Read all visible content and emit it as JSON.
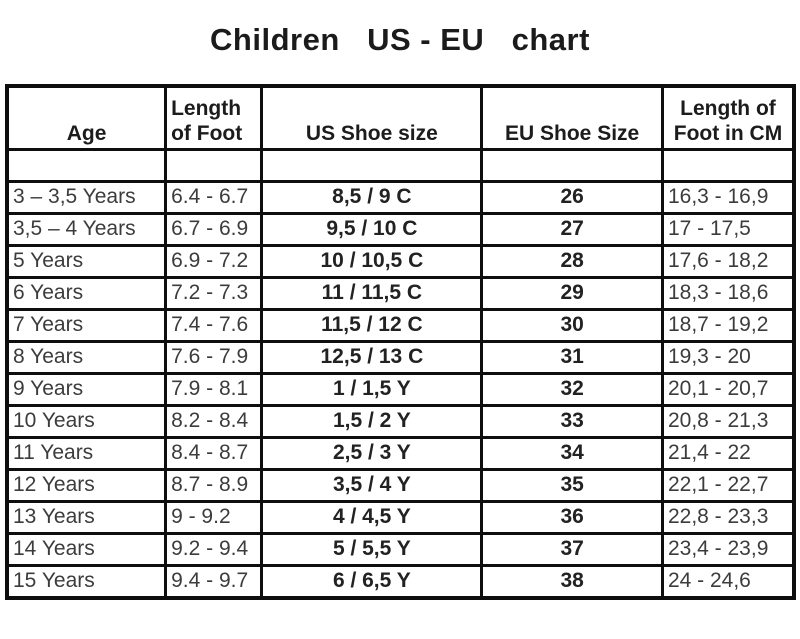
{
  "title": "Children   US - EU   chart",
  "colors": {
    "background": "#ffffff",
    "border": "#0e0e0e",
    "header_text": "#1c1c1c",
    "data_text": "#3c3c3c",
    "bold_data_text": "#222222"
  },
  "chart_data": {
    "type": "table",
    "title": "Children US - EU chart",
    "columns": [
      "Age",
      "Length\nof Foot",
      "US Shoe size",
      "EU Shoe Size",
      "Length of\nFoot in CM"
    ],
    "rows": [
      [
        "3 – 3,5 Years",
        "6.4 - 6.7",
        "8,5 / 9 C",
        "26",
        "16,3 - 16,9"
      ],
      [
        "3,5 – 4 Years",
        "6.7 - 6.9",
        "9,5 / 10 C",
        "27",
        "17 - 17,5"
      ],
      [
        "5 Years",
        "6.9 - 7.2",
        "10 / 10,5 C",
        "28",
        "17,6 - 18,2"
      ],
      [
        "6 Years",
        "7.2 - 7.3",
        "11 / 11,5 C",
        "29",
        "18,3 - 18,6"
      ],
      [
        "7 Years",
        "7.4 - 7.6",
        "11,5 / 12 C",
        "30",
        "18,7 - 19,2"
      ],
      [
        "8 Years",
        "7.6 - 7.9",
        "12,5 / 13 C",
        "31",
        "19,3 - 20"
      ],
      [
        "9 Years",
        "7.9 - 8.1",
        "1 / 1,5 Y",
        "32",
        "20,1 - 20,7"
      ],
      [
        "10 Years",
        "8.2 - 8.4",
        "1,5 / 2 Y",
        "33",
        "20,8 - 21,3"
      ],
      [
        "11 Years",
        "8.4 - 8.7",
        "2,5 / 3 Y",
        "34",
        "21,4 - 22"
      ],
      [
        "12 Years",
        "8.7 - 8.9",
        "3,5 / 4 Y",
        "35",
        "22,1 - 22,7"
      ],
      [
        "13 Years",
        "9 - 9.2",
        "4 / 4,5 Y",
        "36",
        "22,8 - 23,3"
      ],
      [
        "14 Years",
        "9.2 - 9.4",
        "5 / 5,5 Y",
        "37",
        "23,4 - 23,9"
      ],
      [
        "15 Years",
        "9.4 - 9.7",
        "6 / 6,5 Y",
        "38",
        "24 - 24,6"
      ]
    ]
  }
}
